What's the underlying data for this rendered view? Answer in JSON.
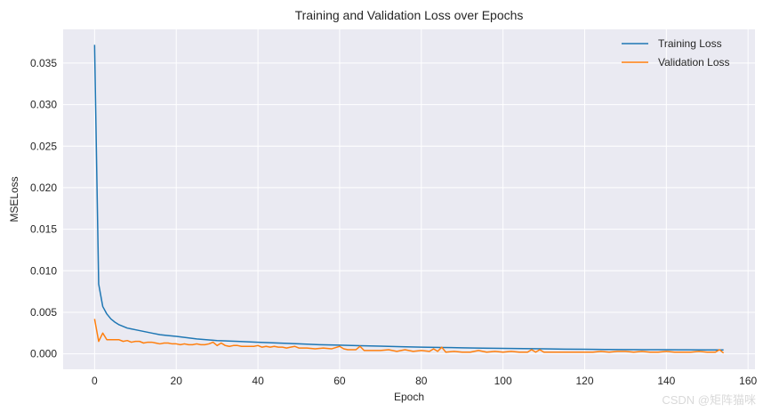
{
  "chart_data": {
    "type": "line",
    "title": "Training and Validation Loss over Epochs",
    "xlabel": "Epoch",
    "ylabel": "MSELoss",
    "xlim": [
      -7.7,
      161.7
    ],
    "ylim": [
      -0.00186,
      0.03906
    ],
    "xticks": [
      0,
      20,
      40,
      60,
      80,
      100,
      120,
      140,
      160
    ],
    "yticks": [
      0.0,
      0.005,
      0.01,
      0.015,
      0.02,
      0.025,
      0.03,
      0.035
    ],
    "ytick_labels": [
      "0.000",
      "0.005",
      "0.010",
      "0.015",
      "0.020",
      "0.025",
      "0.030",
      "0.035"
    ],
    "grid": true,
    "legend_position": "top-right",
    "background_color": "#eaeaf2",
    "series": [
      {
        "name": "Training Loss",
        "color": "#1f77b4",
        "x": [
          0,
          1,
          2,
          3,
          4,
          5,
          6,
          7,
          8,
          9,
          10,
          12,
          14,
          16,
          18,
          20,
          25,
          30,
          35,
          40,
          45,
          50,
          55,
          60,
          65,
          70,
          75,
          80,
          85,
          90,
          95,
          100,
          105,
          110,
          115,
          120,
          125,
          130,
          135,
          140,
          145,
          150,
          154
        ],
        "y": [
          0.0372,
          0.0084,
          0.0057,
          0.0048,
          0.0042,
          0.0038,
          0.0035,
          0.0033,
          0.0031,
          0.003,
          0.0029,
          0.0027,
          0.0025,
          0.0023,
          0.0022,
          0.0021,
          0.0018,
          0.0016,
          0.0015,
          0.0014,
          0.0013,
          0.0012,
          0.0011,
          0.00105,
          0.00098,
          0.00092,
          0.00086,
          0.00081,
          0.00077,
          0.00073,
          0.00069,
          0.00066,
          0.00063,
          0.0006,
          0.00057,
          0.00055,
          0.00053,
          0.00051,
          0.0005,
          0.00049,
          0.00048,
          0.00047,
          0.00047
        ]
      },
      {
        "name": "Validation Loss",
        "color": "#ff7f0e",
        "x": [
          0,
          1,
          2,
          3,
          4,
          5,
          6,
          7,
          8,
          9,
          10,
          11,
          12,
          13,
          14,
          15,
          16,
          17,
          18,
          19,
          20,
          21,
          22,
          23,
          24,
          25,
          26,
          27,
          28,
          29,
          30,
          31,
          32,
          33,
          34,
          35,
          36,
          37,
          38,
          39,
          40,
          41,
          42,
          43,
          44,
          45,
          46,
          47,
          48,
          49,
          50,
          52,
          54,
          56,
          58,
          60,
          61,
          62,
          64,
          65,
          66,
          68,
          70,
          72,
          74,
          76,
          78,
          80,
          82,
          83,
          84,
          85,
          86,
          88,
          90,
          92,
          94,
          96,
          98,
          100,
          102,
          104,
          106,
          107,
          108,
          109,
          110,
          112,
          114,
          116,
          118,
          120,
          122,
          124,
          126,
          128,
          130,
          132,
          134,
          136,
          138,
          140,
          142,
          144,
          146,
          148,
          150,
          152,
          153,
          154
        ],
        "y": [
          0.0042,
          0.0015,
          0.0025,
          0.0017,
          0.0017,
          0.0017,
          0.0017,
          0.0015,
          0.0016,
          0.0014,
          0.0015,
          0.0015,
          0.0013,
          0.0014,
          0.0014,
          0.0013,
          0.0012,
          0.0013,
          0.0013,
          0.0012,
          0.0012,
          0.0011,
          0.0012,
          0.0011,
          0.0011,
          0.0012,
          0.0011,
          0.0011,
          0.0012,
          0.0014,
          0.001,
          0.0013,
          0.001,
          0.0009,
          0.001,
          0.001,
          0.0009,
          0.0009,
          0.0009,
          0.0009,
          0.001,
          0.0008,
          0.0009,
          0.0008,
          0.0009,
          0.0008,
          0.0008,
          0.0007,
          0.0008,
          0.0009,
          0.0007,
          0.0007,
          0.0006,
          0.0007,
          0.0006,
          0.0009,
          0.0006,
          0.0005,
          0.0005,
          0.0009,
          0.0004,
          0.0004,
          0.0004,
          0.0005,
          0.0003,
          0.0005,
          0.0003,
          0.0004,
          0.0003,
          0.0006,
          0.0003,
          0.0008,
          0.0002,
          0.0003,
          0.0002,
          0.0002,
          0.0004,
          0.0002,
          0.0003,
          0.0002,
          0.0003,
          0.0002,
          0.0002,
          0.0005,
          0.0002,
          0.0005,
          0.0002,
          0.0002,
          0.0002,
          0.0002,
          0.0002,
          0.0002,
          0.0002,
          0.0003,
          0.0002,
          0.0003,
          0.0003,
          0.0002,
          0.0003,
          0.0002,
          0.0002,
          0.0003,
          0.0002,
          0.0002,
          0.0002,
          0.0003,
          0.0002,
          0.0002,
          0.0005,
          0.0001
        ]
      }
    ]
  },
  "watermark": "CSDN @矩阵猫咪"
}
